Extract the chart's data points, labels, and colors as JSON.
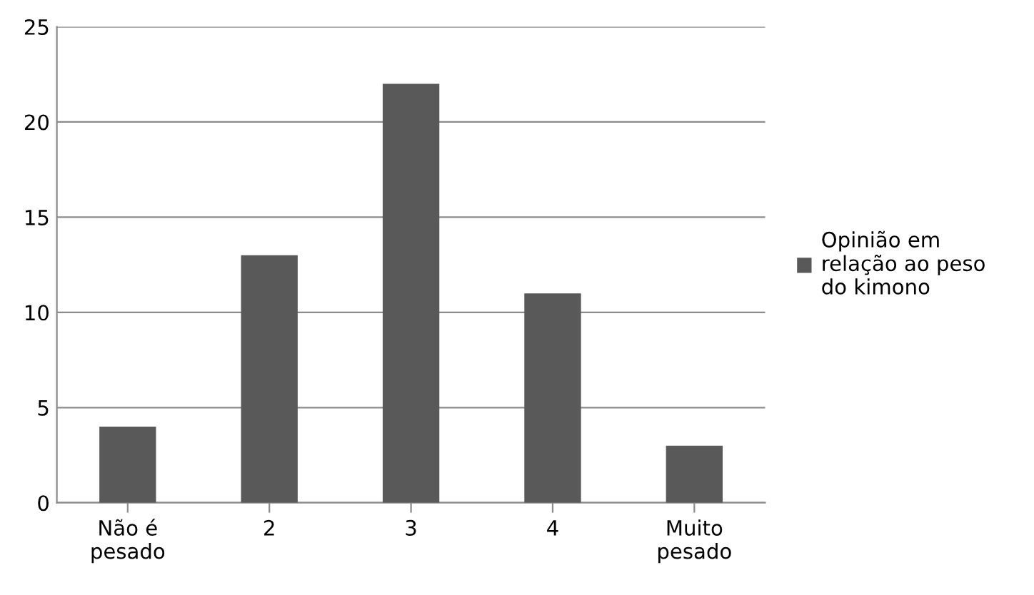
{
  "chart_data": {
    "type": "bar",
    "categories": [
      "Não é pesado",
      "2",
      "3",
      "4",
      "Muito pesado"
    ],
    "series": [
      {
        "name": "Opinião em relação ao peso do kimono",
        "color": "#595959",
        "values": [
          4,
          13,
          22,
          11,
          3
        ]
      }
    ],
    "ylim": [
      0,
      25
    ],
    "yticks": [
      0,
      5,
      10,
      15,
      20,
      25
    ],
    "grid": "y",
    "legend": "right"
  }
}
